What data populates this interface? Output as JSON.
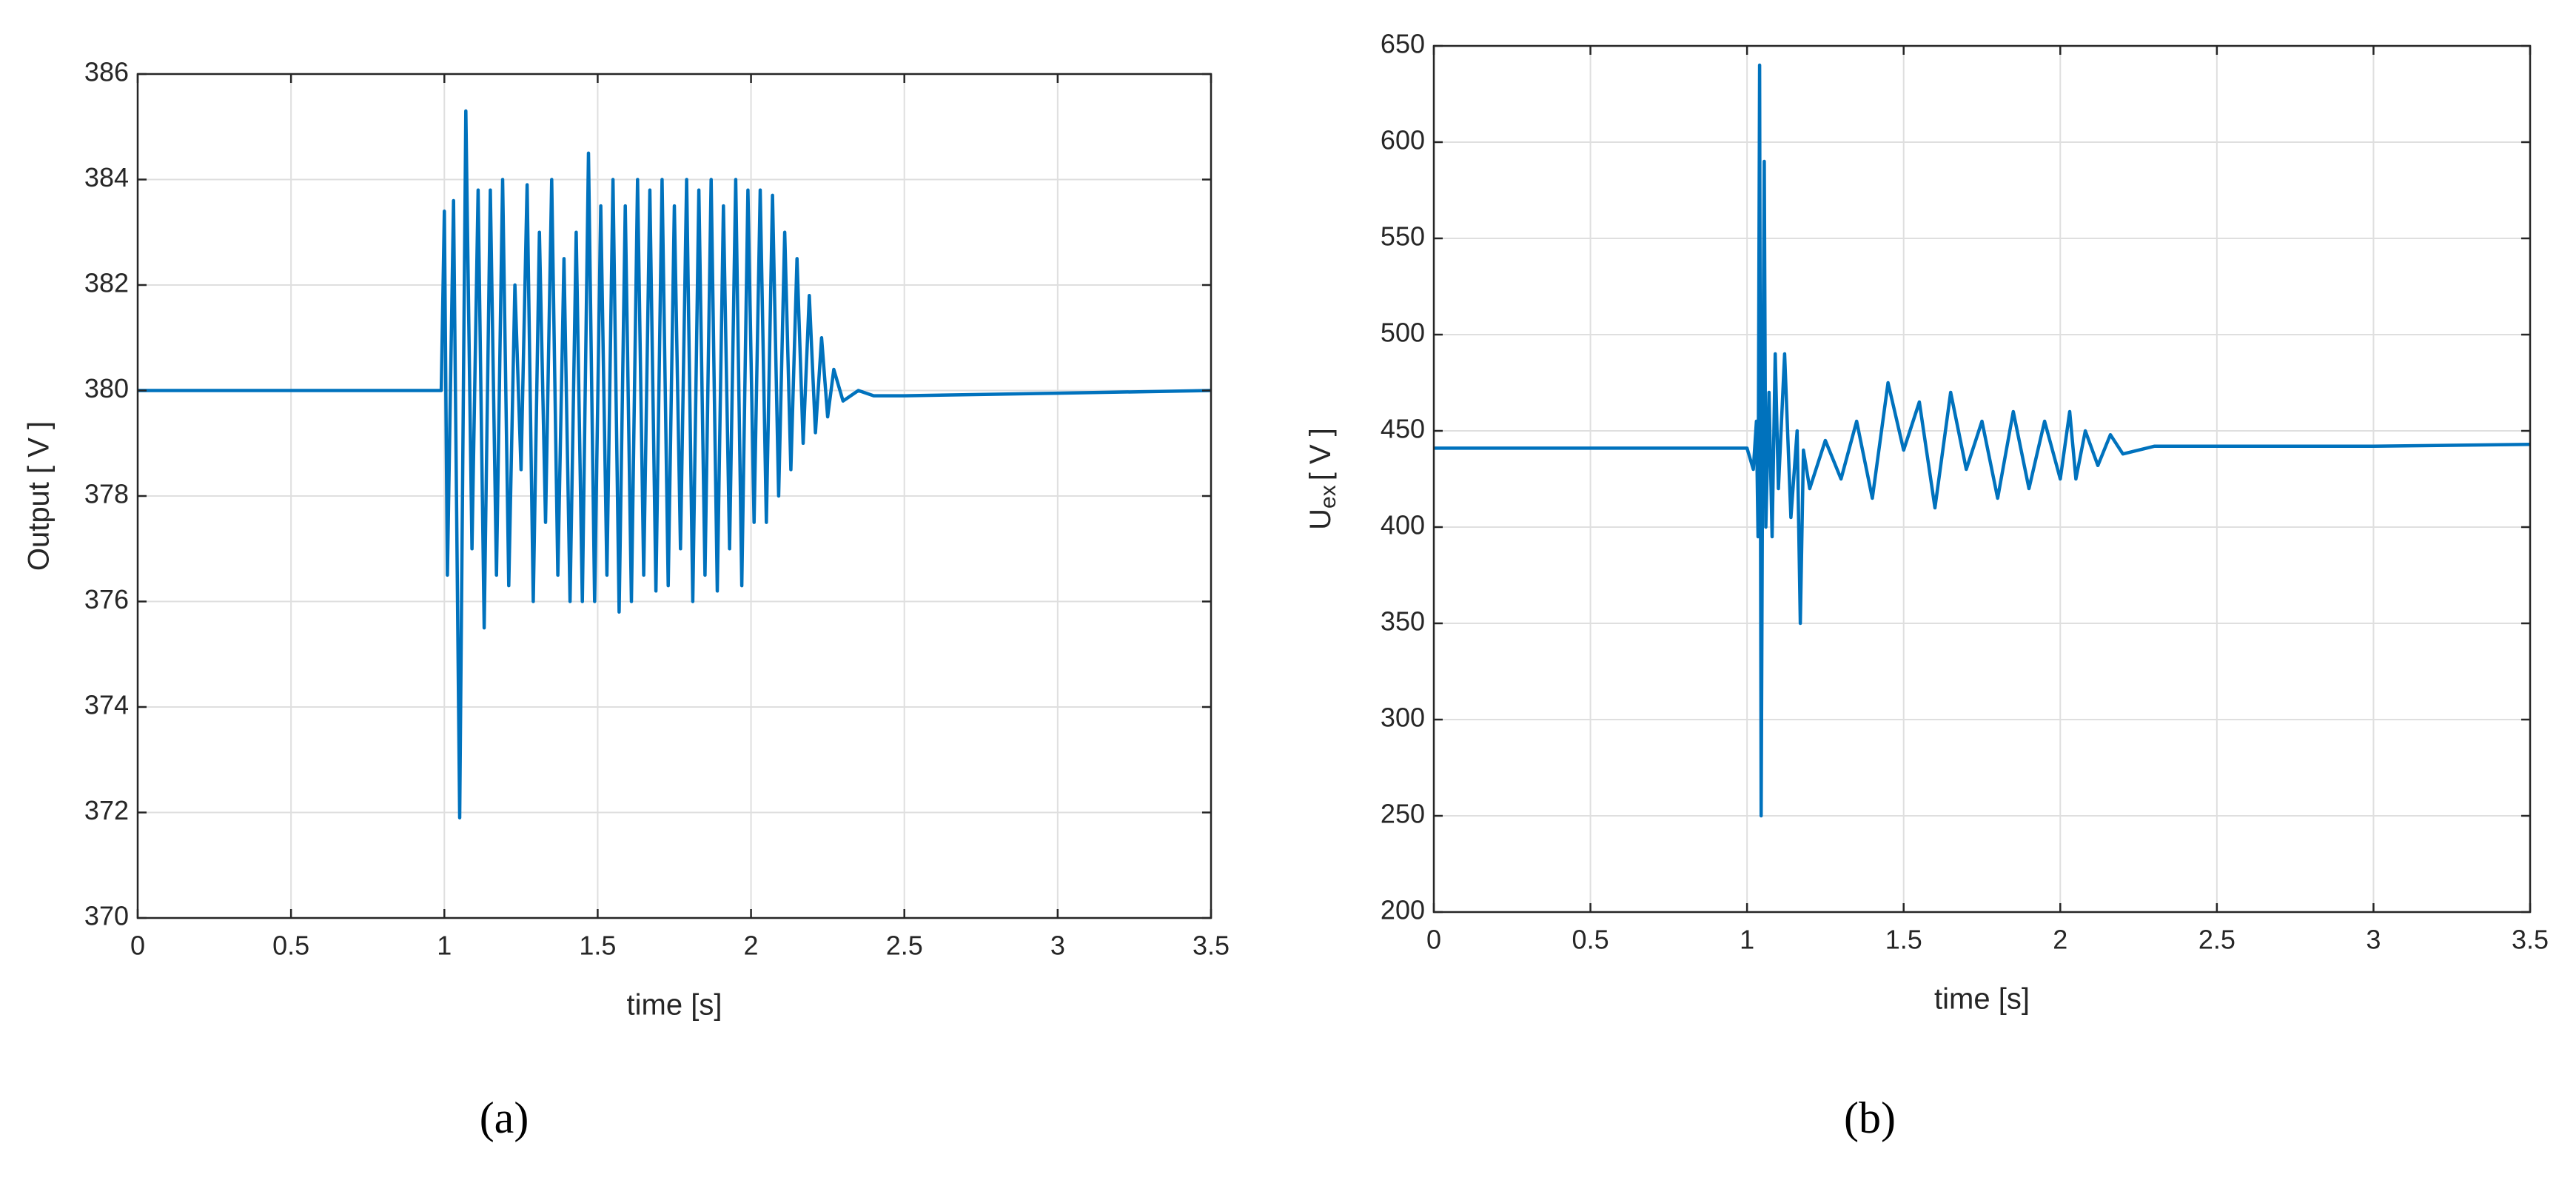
{
  "chart_data": [
    {
      "type": "line",
      "ylabel": "Output [ V ]",
      "xlabel": "time [s]",
      "caption": "(a)",
      "xlim": [
        0,
        3.5
      ],
      "xticks": [
        0,
        0.5,
        1,
        1.5,
        2,
        2.5,
        3,
        3.5
      ],
      "ylim": [
        370,
        386
      ],
      "yticks": [
        370,
        372,
        374,
        376,
        378,
        380,
        382,
        384,
        386
      ],
      "grid": true,
      "color": "#0072bd",
      "x": [
        0,
        0.5,
        0.99,
        1.0,
        1.01,
        1.03,
        1.05,
        1.07,
        1.09,
        1.11,
        1.13,
        1.15,
        1.17,
        1.19,
        1.21,
        1.23,
        1.25,
        1.27,
        1.29,
        1.31,
        1.33,
        1.35,
        1.37,
        1.39,
        1.41,
        1.43,
        1.45,
        1.47,
        1.49,
        1.51,
        1.53,
        1.55,
        1.57,
        1.59,
        1.61,
        1.63,
        1.65,
        1.67,
        1.69,
        1.71,
        1.73,
        1.75,
        1.77,
        1.79,
        1.81,
        1.83,
        1.85,
        1.87,
        1.89,
        1.91,
        1.93,
        1.95,
        1.97,
        1.99,
        2.01,
        2.03,
        2.05,
        2.07,
        2.09,
        2.11,
        2.13,
        2.15,
        2.17,
        2.19,
        2.21,
        2.23,
        2.25,
        2.27,
        2.3,
        2.35,
        2.4,
        2.5,
        3.0,
        3.5
      ],
      "values": [
        380,
        380,
        380,
        383.4,
        376.5,
        383.6,
        371.9,
        385.3,
        377,
        383.8,
        375.5,
        383.8,
        376.5,
        384,
        376.3,
        382,
        378.5,
        383.9,
        376,
        383,
        377.5,
        384,
        376.5,
        382.5,
        376,
        383,
        376,
        384.5,
        376,
        383.5,
        376.5,
        384,
        375.8,
        383.5,
        376,
        384,
        376.5,
        383.8,
        376.2,
        384,
        376.3,
        383.5,
        377,
        384,
        376,
        383.8,
        376.5,
        384,
        376.2,
        383.5,
        377,
        384,
        376.3,
        383.8,
        377.5,
        383.8,
        377.5,
        383.7,
        378,
        383,
        378.5,
        382.5,
        379,
        381.8,
        379.2,
        381,
        379.5,
        380.4,
        379.8,
        380,
        379.9,
        379.9,
        379.95,
        380
      ]
    },
    {
      "type": "line",
      "ylabel": {
        "main": "U",
        "sub": "ex",
        "unit": "[ V ]"
      },
      "xlabel": "time [s]",
      "caption": "(b)",
      "xlim": [
        0,
        3.5
      ],
      "xticks": [
        0,
        0.5,
        1,
        1.5,
        2,
        2.5,
        3,
        3.5
      ],
      "ylim": [
        200,
        650
      ],
      "yticks": [
        200,
        250,
        300,
        350,
        400,
        450,
        500,
        550,
        600,
        650
      ],
      "grid": true,
      "color": "#0072bd",
      "x": [
        0,
        0.5,
        1.0,
        1.02,
        1.03,
        1.035,
        1.04,
        1.045,
        1.05,
        1.055,
        1.06,
        1.07,
        1.08,
        1.09,
        1.1,
        1.12,
        1.14,
        1.16,
        1.17,
        1.18,
        1.2,
        1.25,
        1.3,
        1.35,
        1.4,
        1.45,
        1.5,
        1.55,
        1.6,
        1.65,
        1.7,
        1.75,
        1.8,
        1.85,
        1.9,
        1.95,
        2.0,
        2.03,
        2.05,
        2.08,
        2.12,
        2.16,
        2.2,
        2.3,
        3.0,
        3.5
      ],
      "values": [
        441,
        441,
        441,
        430,
        455,
        395,
        640,
        250,
        450,
        590,
        400,
        470,
        395,
        490,
        420,
        490,
        405,
        450,
        350,
        440,
        420,
        445,
        425,
        455,
        415,
        475,
        440,
        465,
        410,
        470,
        430,
        455,
        415,
        460,
        420,
        455,
        425,
        460,
        425,
        450,
        432,
        448,
        438,
        442,
        442,
        443
      ]
    }
  ]
}
